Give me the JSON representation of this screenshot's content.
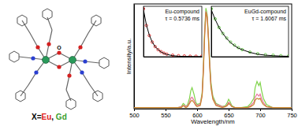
{
  "chart_data": [
    {
      "type": "line",
      "x_label": "Wavelength/nm",
      "y_label": "Intensity/a.u.",
      "x": [
        500,
        520,
        540,
        560,
        570,
        575,
        578,
        580,
        582,
        585,
        588,
        590,
        592,
        595,
        598,
        600,
        605,
        608,
        610,
        612,
        614,
        616,
        618,
        620,
        622,
        625,
        630,
        640,
        645,
        648,
        650,
        652,
        655,
        660,
        670,
        680,
        685,
        690,
        692,
        695,
        698,
        700,
        702,
        705,
        710,
        720,
        730,
        740,
        750
      ],
      "series": [
        {
          "color": "#7ed348",
          "values": [
            0.01,
            0.01,
            0.01,
            0.01,
            0.01,
            0.02,
            0.05,
            0.04,
            0.02,
            0.04,
            0.1,
            0.17,
            0.2,
            0.14,
            0.06,
            0.04,
            0.05,
            0.15,
            0.4,
            0.75,
            0.96,
            0.9,
            0.7,
            0.45,
            0.25,
            0.12,
            0.05,
            0.02,
            0.03,
            0.06,
            0.09,
            0.07,
            0.03,
            0.01,
            0.01,
            0.02,
            0.05,
            0.1,
            0.2,
            0.26,
            0.22,
            0.25,
            0.18,
            0.1,
            0.04,
            0.01,
            0.01,
            0.01,
            0.01
          ]
        },
        {
          "color": "#e8749c",
          "values": [
            0.01,
            0.01,
            0.01,
            0.01,
            0.01,
            0.02,
            0.03,
            0.03,
            0.02,
            0.03,
            0.06,
            0.1,
            0.11,
            0.08,
            0.04,
            0.03,
            0.04,
            0.13,
            0.38,
            0.72,
            0.93,
            0.88,
            0.68,
            0.42,
            0.22,
            0.1,
            0.04,
            0.02,
            0.02,
            0.04,
            0.06,
            0.05,
            0.02,
            0.01,
            0.01,
            0.01,
            0.03,
            0.06,
            0.11,
            0.14,
            0.12,
            0.14,
            0.1,
            0.06,
            0.02,
            0.01,
            0.01,
            0.01,
            0.01
          ]
        },
        {
          "color": "#c8842c",
          "values": [
            0.01,
            0.01,
            0.01,
            0.01,
            0.01,
            0.01,
            0.03,
            0.02,
            0.01,
            0.02,
            0.05,
            0.07,
            0.08,
            0.06,
            0.03,
            0.02,
            0.03,
            0.12,
            0.36,
            0.7,
            0.92,
            0.87,
            0.66,
            0.4,
            0.2,
            0.09,
            0.03,
            0.01,
            0.02,
            0.03,
            0.05,
            0.04,
            0.02,
            0.01,
            0.01,
            0.01,
            0.02,
            0.04,
            0.08,
            0.1,
            0.09,
            0.1,
            0.07,
            0.04,
            0.02,
            0.01,
            0.01,
            0.01,
            0.01
          ]
        }
      ],
      "xlim": [
        500,
        750
      ],
      "xticks": [
        500,
        550,
        600,
        650,
        700,
        750
      ],
      "ylim": [
        0,
        1
      ],
      "tick_labels": "x"
    },
    {
      "type": "scatter",
      "title": "Eu-compound",
      "annotation": "τ = 0.5736 ms",
      "x": [
        0,
        0.5,
        1,
        1.5,
        2,
        2.5,
        3,
        3.5,
        4,
        5,
        6,
        7,
        8,
        9,
        10
      ],
      "series": [
        {
          "type": "scatter",
          "marker": "circle",
          "color": "#e02828",
          "values": [
            0.95,
            0.62,
            0.42,
            0.29,
            0.2,
            0.14,
            0.1,
            0.07,
            0.05,
            0.03,
            0.02,
            0.015,
            0.01,
            0.01,
            0.01
          ]
        },
        {
          "type": "line",
          "color": "#000000",
          "values": [
            0.93,
            0.63,
            0.43,
            0.29,
            0.2,
            0.14,
            0.095,
            0.065,
            0.045,
            0.02,
            0.01,
            0.005,
            0.003,
            0.002,
            0.001
          ]
        }
      ],
      "xlim": [
        0,
        10
      ],
      "ylim": [
        0,
        1
      ],
      "tick_labels": false
    },
    {
      "type": "scatter",
      "title": "EuGd-compound",
      "annotation": "τ = 1.6067 ms",
      "x": [
        0,
        0.5,
        1,
        1.5,
        2,
        2.5,
        3,
        3.5,
        4,
        5,
        6,
        7,
        8,
        9,
        10
      ],
      "series": [
        {
          "type": "scatter",
          "marker": "circle",
          "color": "#5cc83c",
          "values": [
            0.95,
            0.75,
            0.58,
            0.46,
            0.37,
            0.29,
            0.23,
            0.18,
            0.14,
            0.09,
            0.06,
            0.04,
            0.03,
            0.02,
            0.015
          ]
        },
        {
          "type": "line",
          "color": "#000000",
          "values": [
            0.93,
            0.74,
            0.58,
            0.46,
            0.36,
            0.28,
            0.22,
            0.17,
            0.14,
            0.085,
            0.05,
            0.03,
            0.02,
            0.012,
            0.008
          ]
        }
      ],
      "xlim": [
        0,
        10
      ],
      "ylim": [
        0,
        1
      ],
      "tick_labels": false
    }
  ],
  "structure": {
    "atom_label": "O",
    "caption": [
      {
        "text": "X=",
        "color": "#000000"
      },
      {
        "text": "Eu",
        "color": "#e0201a"
      },
      {
        "text": ", ",
        "color": "#000000"
      },
      {
        "text": "Gd",
        "color": "#3aa030"
      }
    ]
  }
}
